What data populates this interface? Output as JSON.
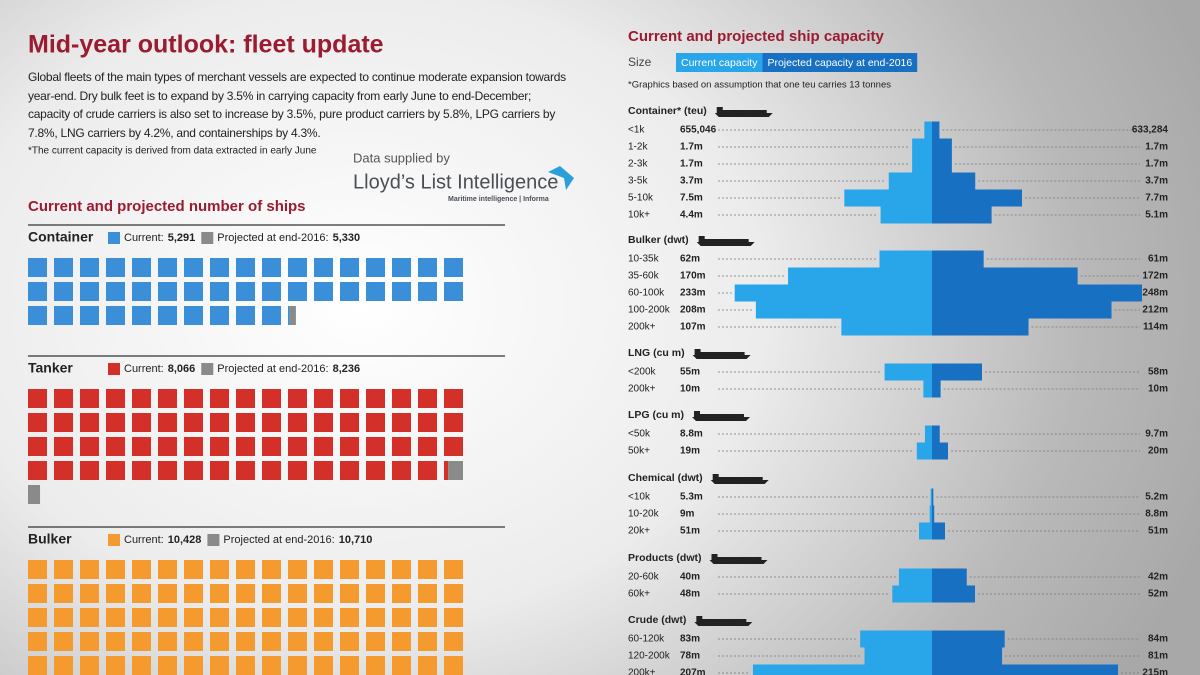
{
  "header": {
    "title": "Mid-year outlook: fleet update",
    "intro": "Global fleets of the main types of merchant vessels are expected to continue moderate expansion towards year-end. Dry bulk feet is to expand by 3.5% in carrying capacity from early June to end-December; capacity of crude carriers is also set to increase by 3.5%, pure product carriers by 5.8%, LPG carriers by 7.8%, LNG carriers by 4.2%, and containerships by 4.3%.",
    "footnote": "*The current capacity is derived from data extracted in early June",
    "supplied_by": "Data supplied by",
    "brand": "Lloyd’s List Intelligence",
    "brand_tagline": "Maritime intelligence | Informa"
  },
  "chart_data": [
    {
      "type": "waffle",
      "title": "Current and projected number of ships",
      "legend_current": "Current:",
      "legend_projected": "Projected at end-2016:",
      "projected_color": "#8a8a8a",
      "groups": [
        {
          "name": "Container",
          "color": "#3b8fd9",
          "current": 5291,
          "current_label": "5,291",
          "projected": 5330,
          "projected_label": "5,330"
        },
        {
          "name": "Tanker",
          "color": "#d3302a",
          "current": 8066,
          "current_label": "8,066",
          "projected": 8236,
          "projected_label": "8,236"
        },
        {
          "name": "Bulker",
          "color": "#f59a2e",
          "current": 10428,
          "current_label": "10,428",
          "projected": 10710,
          "projected_label": "10,710"
        }
      ]
    },
    {
      "type": "butterfly",
      "title": "Current and projected ship capacity",
      "size_label": "Size",
      "series": [
        {
          "name": "Current capacity",
          "color": "#29a5ea"
        },
        {
          "name": "Projected capacity at end-2016",
          "color": "#1770c2"
        }
      ],
      "note": "*Graphics based on assumption that one teu carries 13 tonnes",
      "groups": [
        {
          "name": "Container* (teu)",
          "categories": [
            "<1k",
            "1-2k",
            "2-3k",
            "3-5k",
            "5-10k",
            "10k+"
          ],
          "current": [
            0.655046,
            1.7,
            1.7,
            3.7,
            7.5,
            4.4
          ],
          "current_labels": [
            "655,046",
            "1.7m",
            "1.7m",
            "3.7m",
            "7.5m",
            "4.4m"
          ],
          "projected": [
            0.633284,
            1.7,
            1.7,
            3.7,
            7.7,
            5.1
          ],
          "projected_labels": [
            "633,284",
            "1.7m",
            "1.7m",
            "3.7m",
            "7.7m",
            "5.1m"
          ]
        },
        {
          "name": "Bulker (dwt)",
          "categories": [
            "10-35k",
            "35-60k",
            "60-100k",
            "100-200k",
            "200k+"
          ],
          "current": [
            62,
            170,
            233,
            208,
            107
          ],
          "current_labels": [
            "62m",
            "170m",
            "233m",
            "208m",
            "107m"
          ],
          "projected": [
            61,
            172,
            248,
            212,
            114
          ],
          "projected_labels": [
            "61m",
            "172m",
            "248m",
            "212m",
            "114m"
          ]
        },
        {
          "name": "LNG (cu m)",
          "categories": [
            "<200k",
            "200k+"
          ],
          "current": [
            55,
            10
          ],
          "current_labels": [
            "55m",
            "10m"
          ],
          "projected": [
            58,
            10
          ],
          "projected_labels": [
            "58m",
            "10m"
          ]
        },
        {
          "name": "LPG (cu m)",
          "categories": [
            "<50k",
            "50k+"
          ],
          "current": [
            8.8,
            19
          ],
          "current_labels": [
            "8.8m",
            "19m"
          ],
          "projected": [
            9.7,
            20
          ],
          "projected_labels": [
            "9.7m",
            "20m"
          ]
        },
        {
          "name": "Chemical (dwt)",
          "categories": [
            "<10k",
            "10-20k",
            "20k+"
          ],
          "current": [
            5.3,
            9,
            51
          ],
          "current_labels": [
            "5.3m",
            "9m",
            "51m"
          ],
          "projected": [
            5.2,
            8.8,
            51
          ],
          "projected_labels": [
            "5.2m",
            "8.8m",
            "51m"
          ]
        },
        {
          "name": "Products (dwt)",
          "categories": [
            "20-60k",
            "60k+"
          ],
          "current": [
            40,
            48
          ],
          "current_labels": [
            "40m",
            "48m"
          ],
          "projected": [
            42,
            52
          ],
          "projected_labels": [
            "42m",
            "52m"
          ]
        },
        {
          "name": "Crude (dwt)",
          "categories": [
            "60-120k",
            "120-200k",
            "200k+"
          ],
          "current": [
            83,
            78,
            207
          ],
          "current_labels": [
            "83m",
            "78m",
            "207m"
          ],
          "projected": [
            84,
            81,
            215
          ],
          "projected_labels": [
            "84m",
            "81m",
            "215m"
          ]
        }
      ]
    }
  ]
}
